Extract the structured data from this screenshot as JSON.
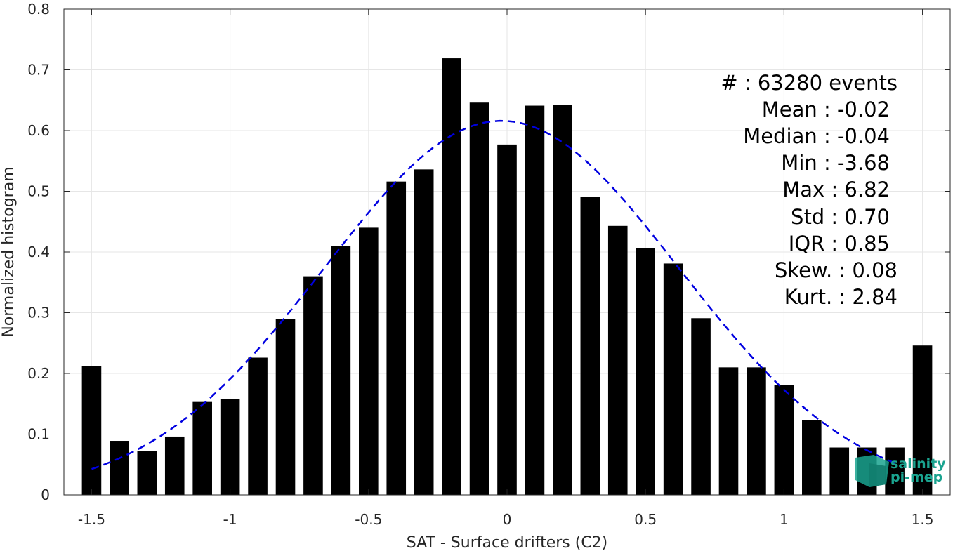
{
  "chart_data": {
    "type": "bar",
    "xlabel": "SAT - Surface drifters (C2)",
    "ylabel": "Normalized histogram",
    "xlim": [
      -1.6,
      1.6
    ],
    "ylim": [
      0,
      0.8
    ],
    "grid": true,
    "xticks": [
      -1.5,
      -1,
      -0.5,
      0,
      0.5,
      1,
      1.5
    ],
    "xtick_labels": [
      "-1.5",
      "-1",
      "-0.5",
      "0",
      "0.5",
      "1",
      "1.5"
    ],
    "yticks": [
      0,
      0.1,
      0.2,
      0.3,
      0.4,
      0.5,
      0.6,
      0.7,
      0.8
    ],
    "ytick_labels": [
      "0",
      "0.1",
      "0.2",
      "0.3",
      "0.4",
      "0.5",
      "0.6",
      "0.7",
      "0.8"
    ],
    "bar_color": "#000000",
    "bar_width": 0.07,
    "x": [
      -1.5,
      -1.4,
      -1.3,
      -1.2,
      -1.1,
      -1.0,
      -0.9,
      -0.8,
      -0.7,
      -0.6,
      -0.5,
      -0.4,
      -0.3,
      -0.2,
      -0.1,
      0.0,
      0.1,
      0.2,
      0.3,
      0.4,
      0.5,
      0.6,
      0.7,
      0.8,
      0.9,
      1.0,
      1.1,
      1.2,
      1.3,
      1.4,
      1.5
    ],
    "values": [
      0.212,
      0.089,
      0.072,
      0.096,
      0.153,
      0.158,
      0.226,
      0.29,
      0.36,
      0.41,
      0.44,
      0.516,
      0.536,
      0.719,
      0.646,
      0.577,
      0.641,
      0.642,
      0.491,
      0.443,
      0.406,
      0.381,
      0.291,
      0.21,
      0.21,
      0.181,
      0.123,
      0.078,
      0.078,
      0.078,
      0.246
    ],
    "fit_curve": {
      "style": "dashed",
      "color": "#0000e0",
      "mean": -0.02,
      "std": 0.64,
      "peak": 0.616,
      "x_range": [
        -1.5,
        1.4
      ]
    },
    "stats": {
      "events": "#  : 63280 events",
      "mean": "Mean : -0.02",
      "median": "Median : -0.04",
      "min": "Min : -3.68",
      "max": "Max : 6.82",
      "std": "Std : 0.70",
      "iqr": "IQR : 0.85",
      "skew": "Skew. : 0.08",
      "kurt": "Kurt. : 2.84"
    }
  },
  "logo": {
    "line1": "salinity",
    "line2": "pi-mep",
    "color": "#1aa38f"
  }
}
